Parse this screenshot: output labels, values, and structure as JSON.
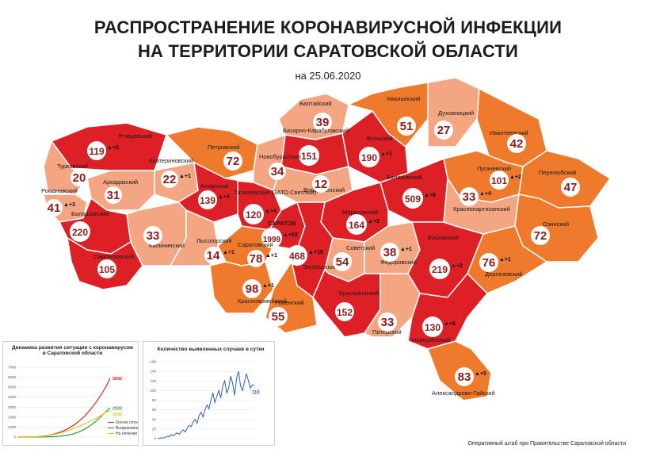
{
  "title_line1": "РАСПРОСТРАНЕНИЕ КОРОНАВИРУСНОЙ ИНФЕКЦИИ",
  "title_line2": "НА ТЕРРИТОРИИ САРАТОВСКОЙ ОБЛАСТИ",
  "date": "на 25.06.2020",
  "footer": "Оперативный штаб при Правительстве Саратовской области",
  "colors": {
    "dark_red": "#dd1f26",
    "orange": "#ef7a2b",
    "salmon": "#f4a582",
    "border": "#ffffff"
  },
  "regions": [
    {
      "name": "Балтайский",
      "count": "39",
      "delta": ""
    },
    {
      "name": "Хвалынский",
      "count": "51",
      "delta": ""
    },
    {
      "name": "Духовницкий",
      "count": "27",
      "delta": ""
    },
    {
      "name": "Ртищевский",
      "count": "119",
      "delta": "+2"
    },
    {
      "name": "Базарно-Карабулакский",
      "count": "151",
      "delta": ""
    },
    {
      "name": "Вольский",
      "count": "190",
      "delta": "+1"
    },
    {
      "name": "Ивантеевский",
      "count": "42",
      "delta": ""
    },
    {
      "name": "Петровский",
      "count": "72",
      "delta": ""
    },
    {
      "name": "Новобурасский",
      "count": "34",
      "delta": ""
    },
    {
      "name": "Турковский",
      "count": "20",
      "delta": ""
    },
    {
      "name": "Екатериновский",
      "count": "22",
      "delta": "+1"
    },
    {
      "name": "Пугачевский",
      "count": "101",
      "delta": "+2"
    },
    {
      "name": "Перелюбский",
      "count": "47",
      "delta": ""
    },
    {
      "name": "Аркадакский",
      "count": "31",
      "delta": ""
    },
    {
      "name": "Аткарский",
      "count": "139",
      "delta": "+4"
    },
    {
      "name": "Воскресенский",
      "count": "12",
      "delta": ""
    },
    {
      "name": "Балаковский",
      "count": "509",
      "delta": "+8"
    },
    {
      "name": "Романовский",
      "count": "41",
      "delta": "+3"
    },
    {
      "name": "Татищевский (ЗАТО Светлый)",
      "count": "120",
      "delta": "+4"
    },
    {
      "name": "Краснопартизанский",
      "count": "33",
      "delta": "+4"
    },
    {
      "name": "Балашовский",
      "count": "220",
      "delta": ""
    },
    {
      "name": "Марксовский",
      "count": "164",
      "delta": "+2"
    },
    {
      "name": "Калининский",
      "count": "33",
      "delta": ""
    },
    {
      "name": "Лысогорский",
      "count": "14",
      "delta": "+1"
    },
    {
      "name": "САРАТОВ",
      "count": "1999",
      "delta": "+52"
    },
    {
      "name": "Озинский",
      "count": "72",
      "delta": ""
    },
    {
      "name": "Самойловский",
      "count": "105",
      "delta": ""
    },
    {
      "name": "Энгельсский",
      "count": "468",
      "delta": "+10"
    },
    {
      "name": "Советский",
      "count": "54",
      "delta": ""
    },
    {
      "name": "Федоровский",
      "count": "38",
      "delta": "+1"
    },
    {
      "name": "Саратовский",
      "count": "78",
      "delta": "+1"
    },
    {
      "name": "Ершовский",
      "count": "219",
      "delta": "+2"
    },
    {
      "name": "Дергачевский",
      "count": "76",
      "delta": "+1"
    },
    {
      "name": "Красноармейский",
      "count": "98",
      "delta": "+1"
    },
    {
      "name": "Ровенский",
      "count": "55",
      "delta": ""
    },
    {
      "name": "Красноkutский",
      "count": "152",
      "delta": ""
    },
    {
      "name": "Питерский",
      "count": "33",
      "delta": ""
    },
    {
      "name": "Новоузенский",
      "count": "130",
      "delta": "+6"
    },
    {
      "name": "Александрово-Гайский",
      "count": "83",
      "delta": "+5"
    }
  ],
  "chart1": {
    "title": "Динамика развития ситуации с коронавирусом в Саратовской области",
    "labels": {
      "cases": "5892",
      "recovered": "2922",
      "treatment": "2605"
    },
    "legend": [
      "Кол-во случаев",
      "Выздоровление",
      "На лечении"
    ],
    "y_ticks": [
      "7000",
      "6000",
      "5000",
      "4000",
      "3000",
      "2000",
      "1000",
      "0"
    ]
  },
  "chart2": {
    "title": "Количество выявленных случаев в сутки",
    "last_label": "110",
    "y_ticks": [
      "160",
      "140",
      "120",
      "100",
      "80",
      "60",
      "40",
      "20",
      "0"
    ]
  },
  "chart_data": [
    {
      "type": "line",
      "title": "Динамика развития ситуации с коронавирусом в Саратовской области",
      "ylim": [
        0,
        7000
      ],
      "series": [
        {
          "name": "Кол-во случаев",
          "values": [
            0,
            2,
            5,
            10,
            20,
            40,
            70,
            110,
            170,
            250,
            350,
            480,
            640,
            830,
            1050,
            1300,
            1600,
            1950,
            2350,
            2800,
            3300,
            3850,
            4450,
            5100,
            5892
          ]
        },
        {
          "name": "Выздоровление",
          "values": [
            0,
            0,
            0,
            0,
            0,
            2,
            5,
            10,
            20,
            35,
            55,
            85,
            130,
            190,
            270,
            380,
            520,
            700,
            920,
            1180,
            1480,
            1820,
            2200,
            2580,
            2922
          ]
        },
        {
          "name": "На лечении",
          "values": [
            0,
            2,
            5,
            10,
            20,
            38,
            65,
            100,
            150,
            215,
            295,
            395,
            510,
            640,
            780,
            920,
            1080,
            1250,
            1430,
            1620,
            1820,
            2030,
            2250,
            2520,
            2605
          ]
        }
      ]
    },
    {
      "type": "line",
      "title": "Количество выявленных случаев в сутки",
      "ylim": [
        0,
        160
      ],
      "series": [
        {
          "name": "",
          "values": [
            0,
            1,
            2,
            1,
            3,
            5,
            4,
            8,
            6,
            10,
            12,
            9,
            15,
            18,
            14,
            22,
            28,
            25,
            35,
            40,
            32,
            48,
            55,
            45,
            60,
            70,
            62,
            80,
            95,
            75,
            88,
            100,
            85,
            110,
            120,
            95,
            105,
            130,
            115,
            90,
            125,
            140,
            110,
            100,
            118,
            135,
            120,
            105,
            112,
            110
          ]
        }
      ]
    }
  ]
}
